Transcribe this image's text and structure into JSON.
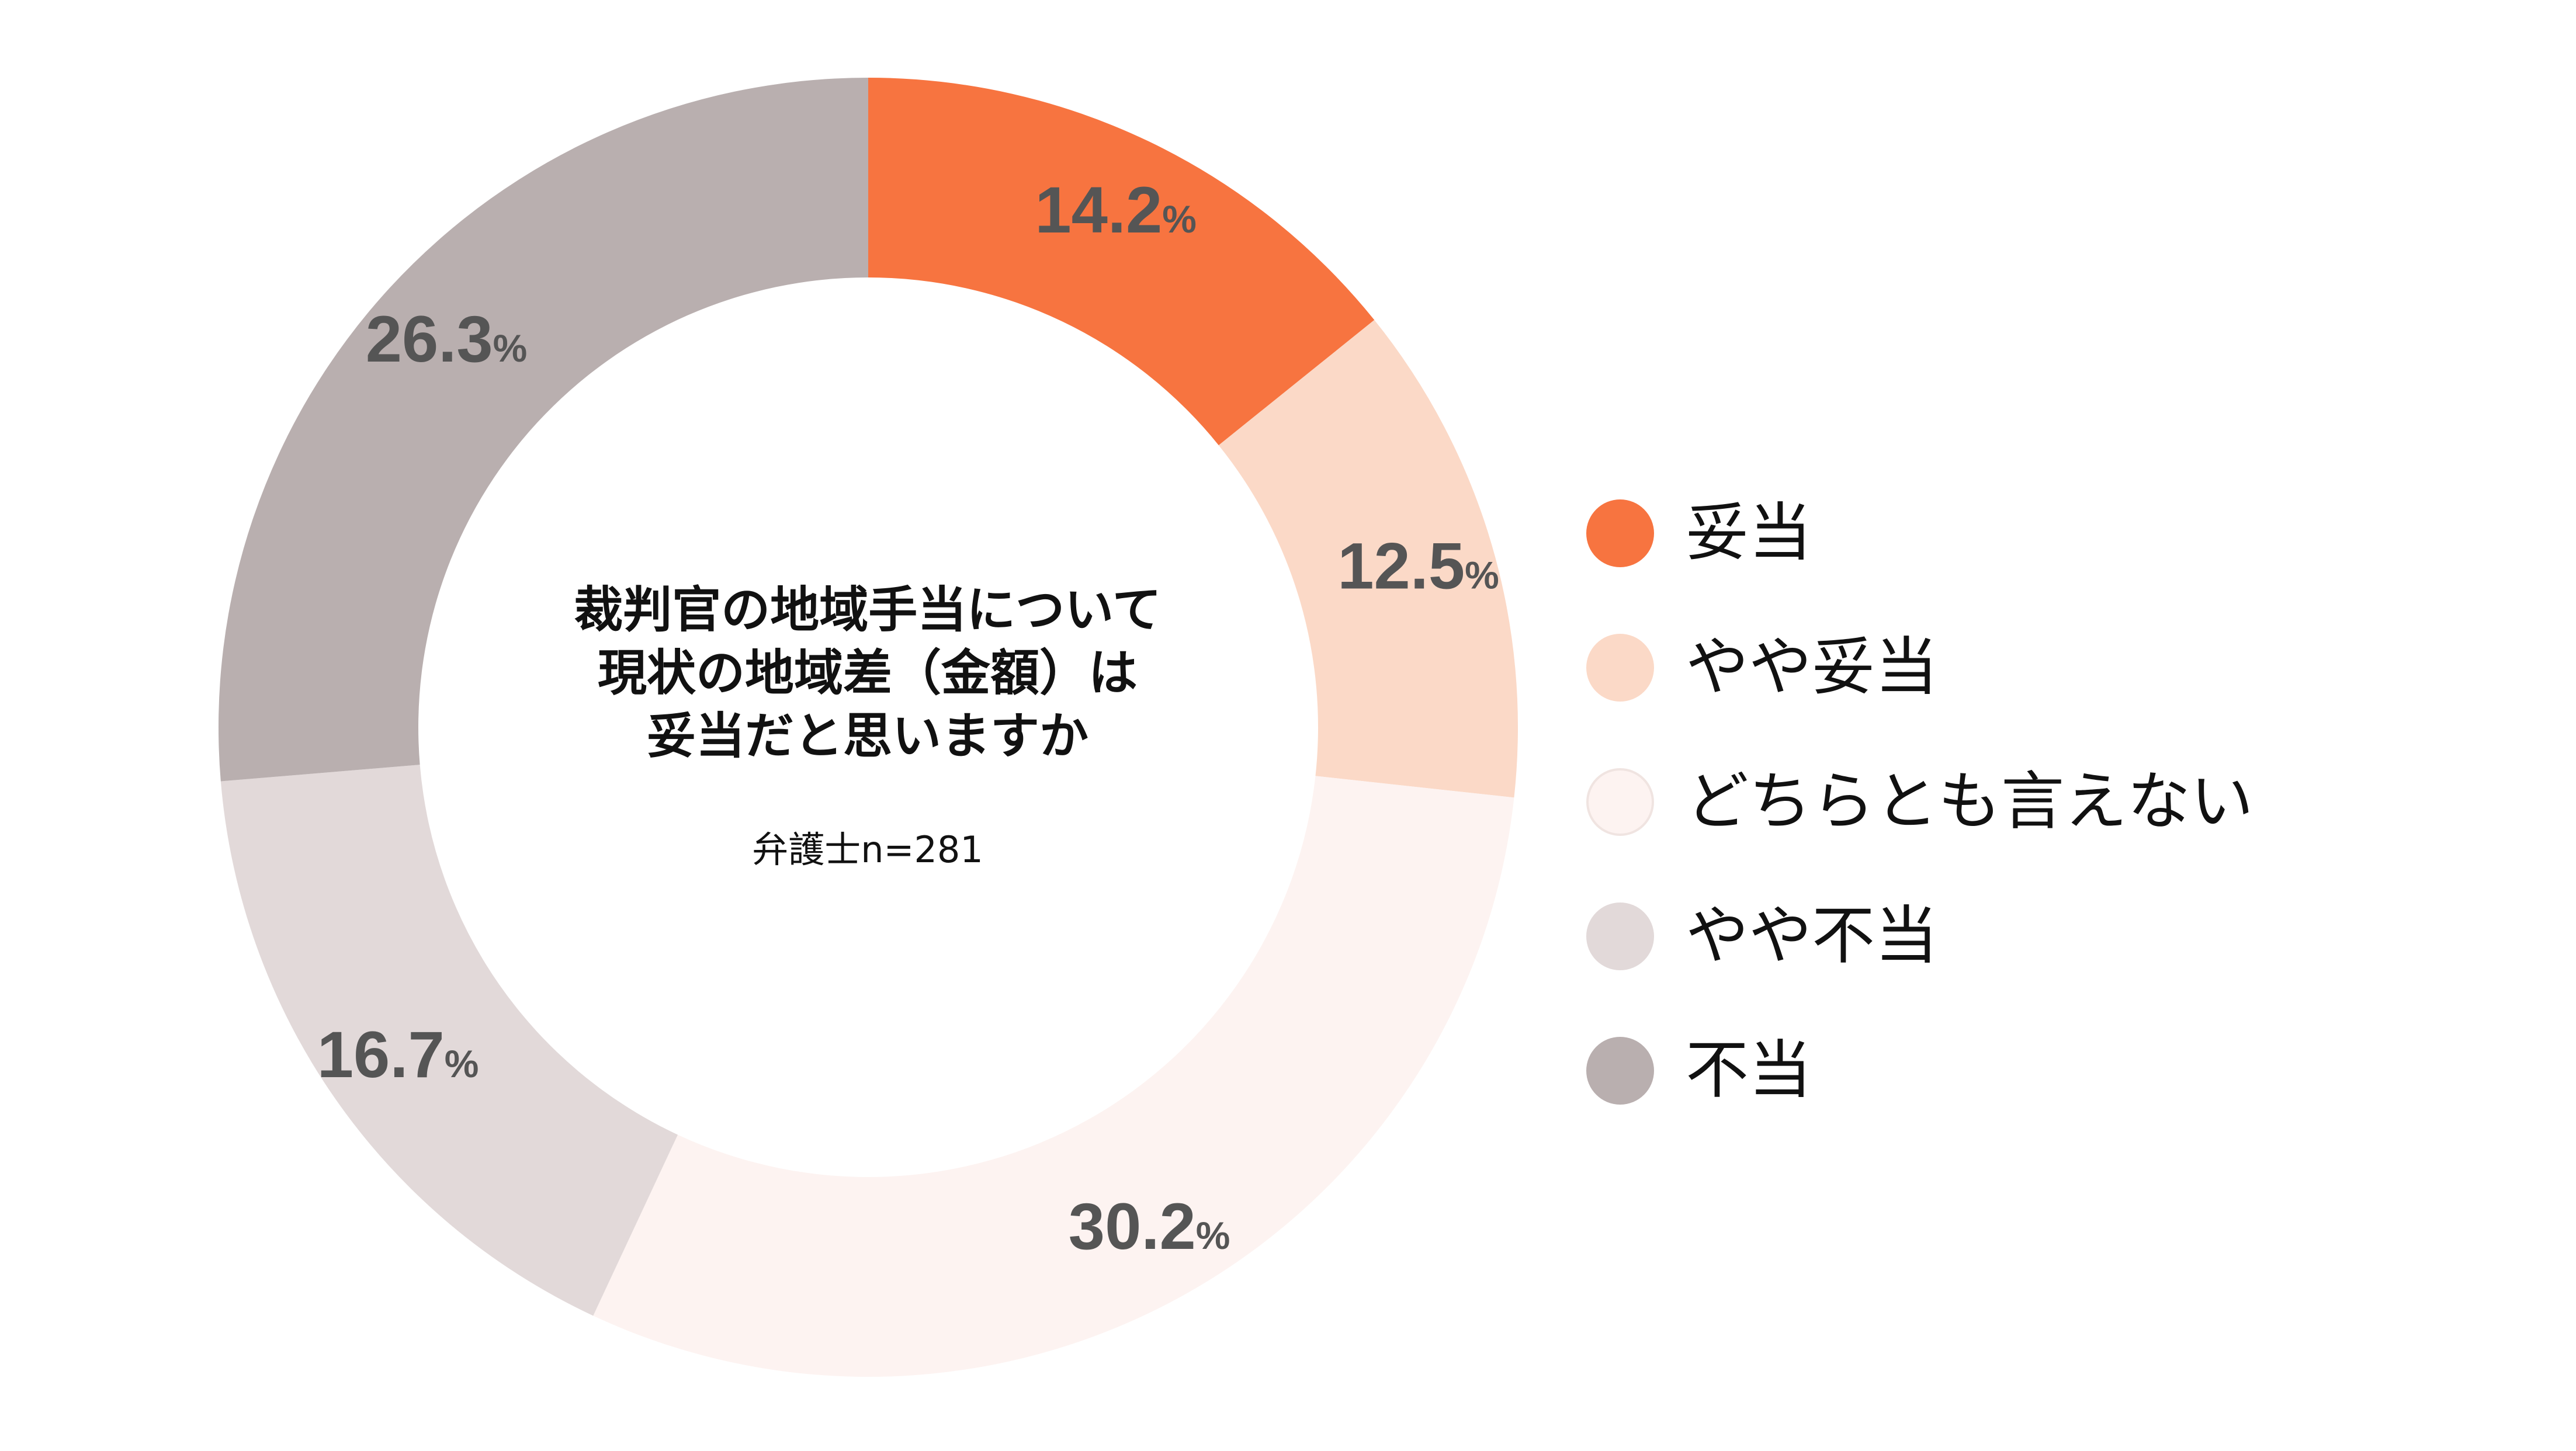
{
  "chart_data": {
    "type": "pie",
    "subtype": "donut",
    "title_lines": [
      "裁判官の地域手当について",
      "現状の地域差（金額）は",
      "妥当だと思いますか"
    ],
    "sample_label": "弁護士n=281",
    "unit": "%",
    "slices": [
      {
        "label": "妥当",
        "value": 14.2,
        "value_text": "14.2",
        "color": "#F77440"
      },
      {
        "label": "やや妥当",
        "value": 12.5,
        "value_text": "12.5",
        "color": "#FBD9C7"
      },
      {
        "label": "どちらとも言えない",
        "value": 30.2,
        "value_text": "30.2",
        "color": "#FDF3F1"
      },
      {
        "label": "やや不当",
        "value": 16.7,
        "value_text": "16.7",
        "color": "#E2D9D9"
      },
      {
        "label": "不当",
        "value": 26.3,
        "value_text": "26.3",
        "color": "#B9AFAF"
      }
    ],
    "legend_position": "right",
    "start_angle": "top",
    "direction": "clockwise"
  }
}
